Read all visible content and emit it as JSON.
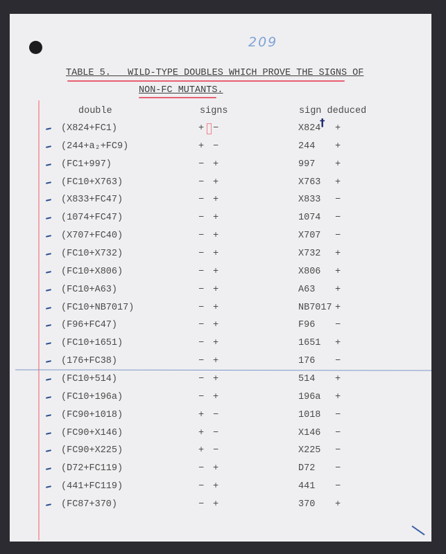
{
  "page_number": "209",
  "title_line1": "TABLE 5.   WILD-TYPE DOUBLES WHICH PROVE THE SIGNS OF",
  "title_line2": "NON-FC MUTANTS.",
  "headers": {
    "double": "double",
    "signs": "signs",
    "sign_deduced": "sign deduced"
  },
  "rows": [
    {
      "double": "(X824+FC1)",
      "s1": "+",
      "s2": "−",
      "mutant": "X824",
      "sign": "+"
    },
    {
      "double": "(244+a₂+FC9)",
      "s1": "+",
      "s2": "−",
      "mutant": "244",
      "sign": "+"
    },
    {
      "double": "(FC1+997)",
      "s1": "−",
      "s2": "+",
      "mutant": "997",
      "sign": "+"
    },
    {
      "double": "(FC10+X763)",
      "s1": "−",
      "s2": "+",
      "mutant": "X763",
      "sign": "+"
    },
    {
      "double": "(X833+FC47)",
      "s1": "−",
      "s2": "+",
      "mutant": "X833",
      "sign": "−"
    },
    {
      "double": "(1074+FC47)",
      "s1": "−",
      "s2": "+",
      "mutant": "1074",
      "sign": "−"
    },
    {
      "double": "(X707+FC40)",
      "s1": "−",
      "s2": "+",
      "mutant": "X707",
      "sign": "−"
    },
    {
      "double": "(FC10+X732)",
      "s1": "−",
      "s2": "+",
      "mutant": "X732",
      "sign": "+"
    },
    {
      "double": "(FC10+X806)",
      "s1": "−",
      "s2": "+",
      "mutant": "X806",
      "sign": "+"
    },
    {
      "double": "(FC10+A63)",
      "s1": "−",
      "s2": "+",
      "mutant": "A63",
      "sign": "+"
    },
    {
      "double": "(FC10+NB7017)",
      "s1": "−",
      "s2": "+",
      "mutant": "NB7017",
      "sign": "+"
    },
    {
      "double": "(F96+FC47)",
      "s1": "−",
      "s2": "+",
      "mutant": "F96",
      "sign": "−"
    },
    {
      "double": "(FC10+1651)",
      "s1": "−",
      "s2": "+",
      "mutant": "1651",
      "sign": "+"
    },
    {
      "double": "(176+FC38)",
      "s1": "−",
      "s2": "+",
      "mutant": "176",
      "sign": "−"
    },
    {
      "double": "(FC10+514)",
      "s1": "−",
      "s2": "+",
      "mutant": "514",
      "sign": "+"
    },
    {
      "double": "(FC10+196a)",
      "s1": "−",
      "s2": "+",
      "mutant": "196a",
      "sign": "+"
    },
    {
      "double": "(FC90+1018)",
      "s1": "+",
      "s2": "−",
      "mutant": "1018",
      "sign": "−"
    },
    {
      "double": "(FC90+X146)",
      "s1": "+",
      "s2": "−",
      "mutant": "X146",
      "sign": "−"
    },
    {
      "double": "(FC90+X225)",
      "s1": "+",
      "s2": "−",
      "mutant": "X225",
      "sign": "−"
    },
    {
      "double": "(D72+FC119)",
      "s1": "−",
      "s2": "+",
      "mutant": "D72",
      "sign": "−"
    },
    {
      "double": "(441+FC119)",
      "s1": "−",
      "s2": "+",
      "mutant": "441",
      "sign": "−"
    },
    {
      "double": "(FC87+370)",
      "s1": "−",
      "s2": "+",
      "mutant": "370",
      "sign": "+"
    }
  ],
  "annotation_dagger": "†",
  "colors": {
    "background": "#2b2b31",
    "paper": "#efeff1",
    "red_pencil": "#e86070",
    "blue_ink": "#2d4f8f"
  }
}
